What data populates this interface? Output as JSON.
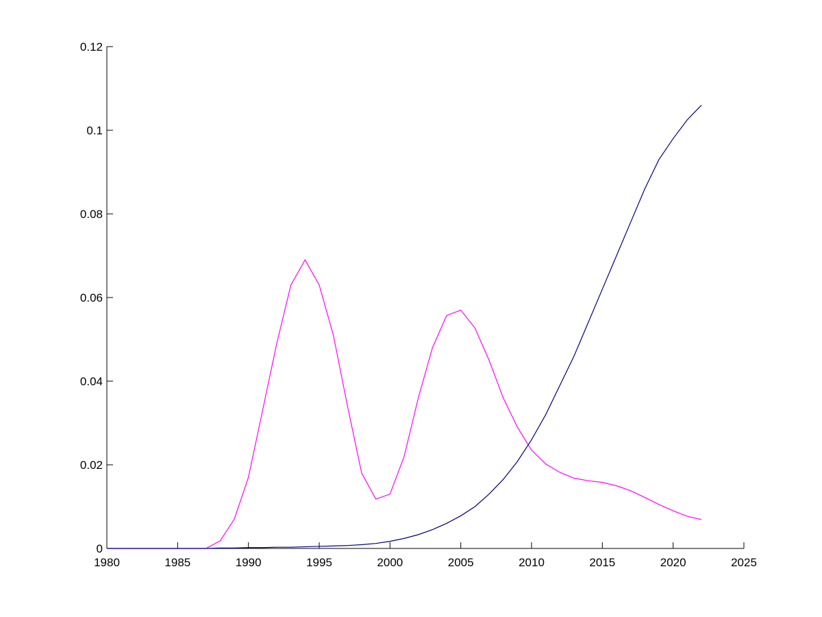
{
  "chart_data": {
    "type": "line",
    "x": [
      1980,
      1981,
      1982,
      1983,
      1984,
      1985,
      1986,
      1987,
      1988,
      1989,
      1990,
      1991,
      1992,
      1993,
      1994,
      1995,
      1996,
      1997,
      1998,
      1999,
      2000,
      2001,
      2002,
      2003,
      2004,
      2005,
      2006,
      2007,
      2008,
      2009,
      2010,
      2011,
      2012,
      2013,
      2014,
      2015,
      2016,
      2017,
      2018,
      2019,
      2020,
      2021,
      2022
    ],
    "series": [
      {
        "color": "#ff00ff",
        "values": [
          0,
          0,
          0,
          0,
          0,
          0,
          0,
          0,
          0.0018,
          0.007,
          0.017,
          0.033,
          0.049,
          0.063,
          0.069,
          0.063,
          0.051,
          0.034,
          0.018,
          0.0118,
          0.013,
          0.022,
          0.036,
          0.048,
          0.0557,
          0.057,
          0.0527,
          0.045,
          0.036,
          0.029,
          0.0235,
          0.0202,
          0.0182,
          0.0168,
          0.0162,
          0.0158,
          0.015,
          0.0138,
          0.0122,
          0.0105,
          0.009,
          0.0077,
          0.0069
        ]
      },
      {
        "color": "#000080",
        "values": [
          0,
          0,
          0,
          0,
          0,
          0,
          0,
          0,
          0.0001,
          0.0001,
          0.0002,
          0.0002,
          0.0003,
          0.0003,
          0.0004,
          0.0005,
          0.0006,
          0.0007,
          0.0009,
          0.0012,
          0.0017,
          0.0024,
          0.0033,
          0.0045,
          0.006,
          0.0078,
          0.01,
          0.013,
          0.0165,
          0.0208,
          0.026,
          0.032,
          0.039,
          0.046,
          0.054,
          0.062,
          0.07,
          0.078,
          0.086,
          0.093,
          0.098,
          0.1025,
          0.106
        ]
      }
    ],
    "xlim": [
      1980,
      2025
    ],
    "xticks": [
      1980,
      1985,
      1990,
      1995,
      2000,
      2005,
      2010,
      2015,
      2020,
      2025
    ],
    "ylim": [
      0,
      0.12
    ],
    "yticks": [
      0,
      0.02,
      0.04,
      0.06,
      0.08,
      0.1,
      0.12
    ],
    "grid": false
  }
}
